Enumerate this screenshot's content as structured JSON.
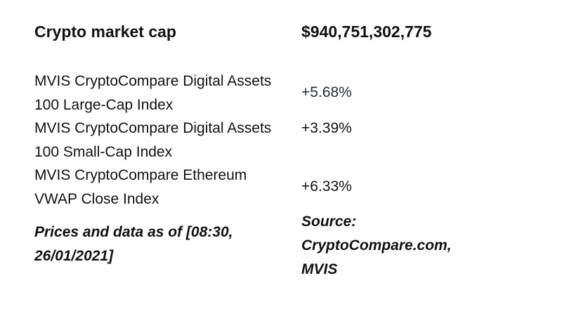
{
  "header": {
    "label": "Crypto market cap",
    "value": "$940,751,302,775"
  },
  "rows": [
    {
      "name": "MVIS CryptoCompare Digital Assets 100 Large-Cap Index",
      "change": "+5.68%"
    },
    {
      "name": "MVIS CryptoCompare Digital Assets 100 Small-Cap Index",
      "change": "+3.39%"
    },
    {
      "name": "MVIS CryptoCompare Ethereum VWAP Close Index",
      "change": "+6.33%"
    }
  ],
  "footer": {
    "timestamp_note": "Prices and data as of [08:30, 26/01/2021]",
    "source_note": "Source: CryptoCompare.com, MVIS"
  }
}
